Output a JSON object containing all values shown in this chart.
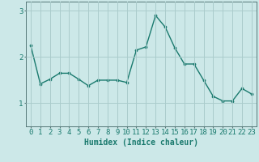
{
  "x": [
    0,
    1,
    2,
    3,
    4,
    5,
    6,
    7,
    8,
    9,
    10,
    11,
    12,
    13,
    14,
    15,
    16,
    17,
    18,
    19,
    20,
    21,
    22,
    23
  ],
  "y": [
    2.25,
    1.42,
    1.52,
    1.65,
    1.65,
    1.52,
    1.38,
    1.5,
    1.5,
    1.5,
    1.45,
    2.15,
    2.22,
    2.9,
    2.65,
    2.2,
    1.85,
    1.85,
    1.5,
    1.15,
    1.05,
    1.05,
    1.32,
    1.2
  ],
  "line_color": "#1a7a6e",
  "marker": "o",
  "marker_size": 2.2,
  "linewidth": 1.0,
  "bg_color": "#cce8e8",
  "grid_color": "#aacccc",
  "xlabel": "Humidex (Indice chaleur)",
  "xlim": [
    -0.5,
    23.5
  ],
  "ylim": [
    0.5,
    3.2
  ],
  "yticks": [
    1,
    2,
    3
  ],
  "xticks": [
    0,
    1,
    2,
    3,
    4,
    5,
    6,
    7,
    8,
    9,
    10,
    11,
    12,
    13,
    14,
    15,
    16,
    17,
    18,
    19,
    20,
    21,
    22,
    23
  ],
  "xlabel_fontsize": 7,
  "tick_fontsize": 6.5,
  "axis_color": "#557777"
}
